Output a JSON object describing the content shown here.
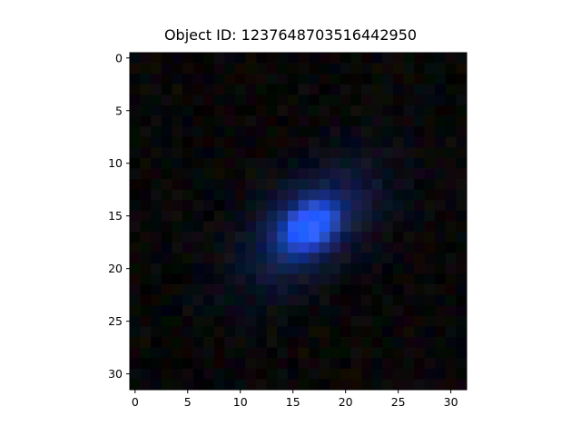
{
  "figure": {
    "title": "Object ID: 1237648703516442950"
  },
  "image": {
    "type": "pixel_image",
    "grid_size": 32,
    "background_color": "#070707",
    "object": {
      "color": "#2a5cff",
      "center_x": 16.6,
      "center_y": 16.0,
      "major_axis_angle_deg": -40
    },
    "x_ticks": [
      "0",
      "5",
      "10",
      "15",
      "20",
      "25",
      "30"
    ],
    "y_ticks": [
      "0",
      "5",
      "10",
      "15",
      "20",
      "25",
      "30"
    ]
  }
}
